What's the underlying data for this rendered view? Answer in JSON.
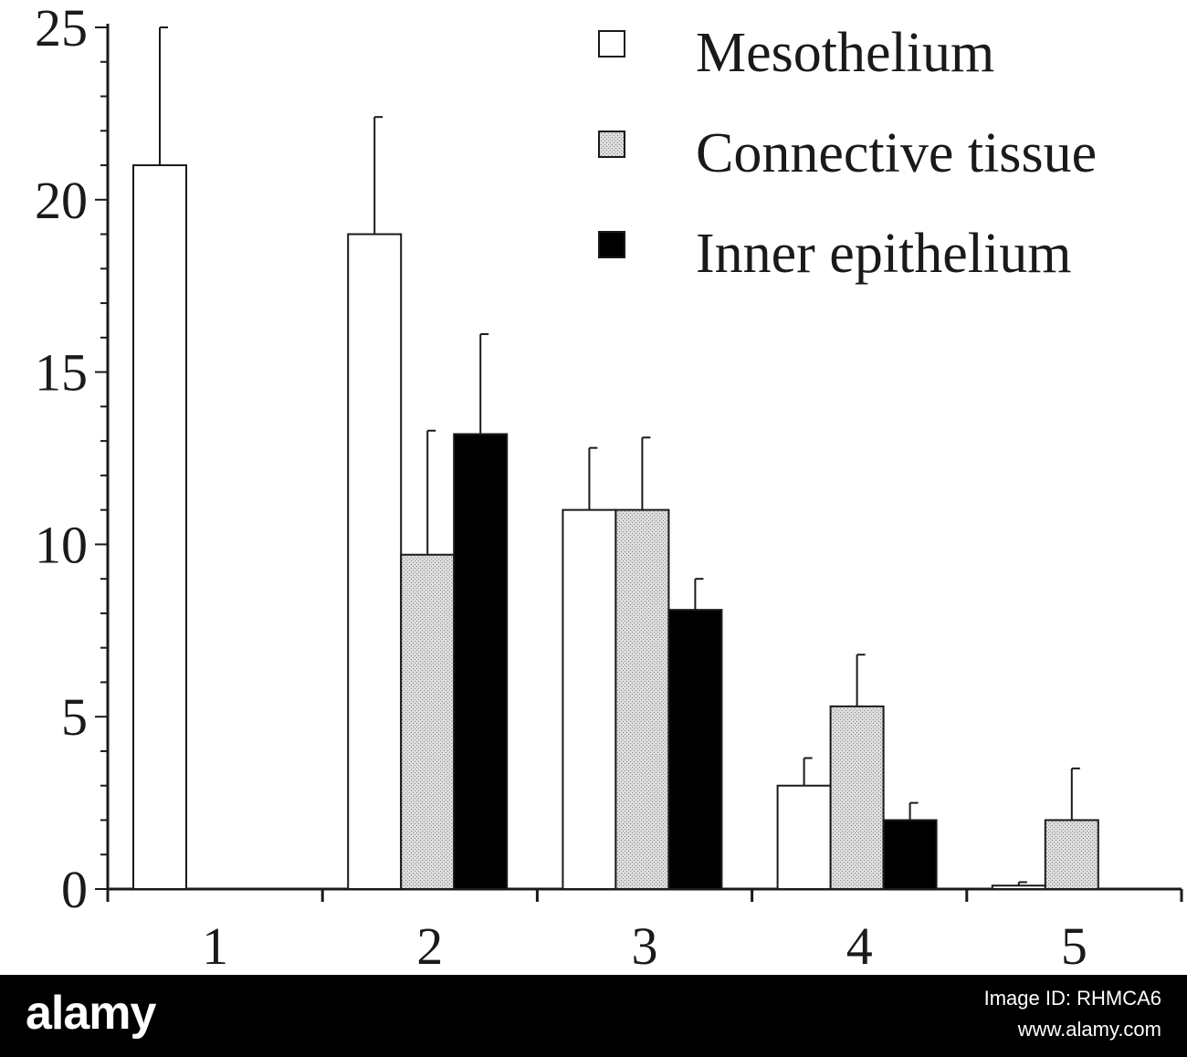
{
  "chart_data": {
    "type": "bar",
    "categories": [
      "1",
      "2",
      "3",
      "4",
      "5"
    ],
    "ylim": [
      0,
      25
    ],
    "yticks": [
      "0",
      "5",
      "10",
      "15",
      "20",
      "25"
    ],
    "series": [
      {
        "name": "Mesothelium",
        "pattern": "open",
        "values": [
          21.0,
          19.0,
          11.0,
          3.0,
          0.1
        ],
        "errors": [
          4.0,
          3.4,
          1.8,
          0.8,
          0.1
        ]
      },
      {
        "name": "Connective tissue",
        "pattern": "stippled",
        "values": [
          null,
          9.7,
          11.0,
          5.3,
          2.0
        ],
        "errors": [
          null,
          3.6,
          2.1,
          1.5,
          1.5
        ]
      },
      {
        "name": "Inner epithelium",
        "pattern": "solid",
        "values": [
          null,
          13.2,
          8.1,
          2.0,
          null
        ],
        "errors": [
          null,
          2.9,
          0.9,
          0.5,
          null
        ]
      }
    ],
    "colors": {
      "open": "#ffffff",
      "stippled": "#d9d9d9",
      "solid": "#000000",
      "axis": "#1a1a1a"
    },
    "legend_placement": "top-right",
    "grid": false
  },
  "watermark": {
    "logo": "alamy",
    "image_id": "Image ID: RHMCA6",
    "url": "www.alamy.com"
  }
}
